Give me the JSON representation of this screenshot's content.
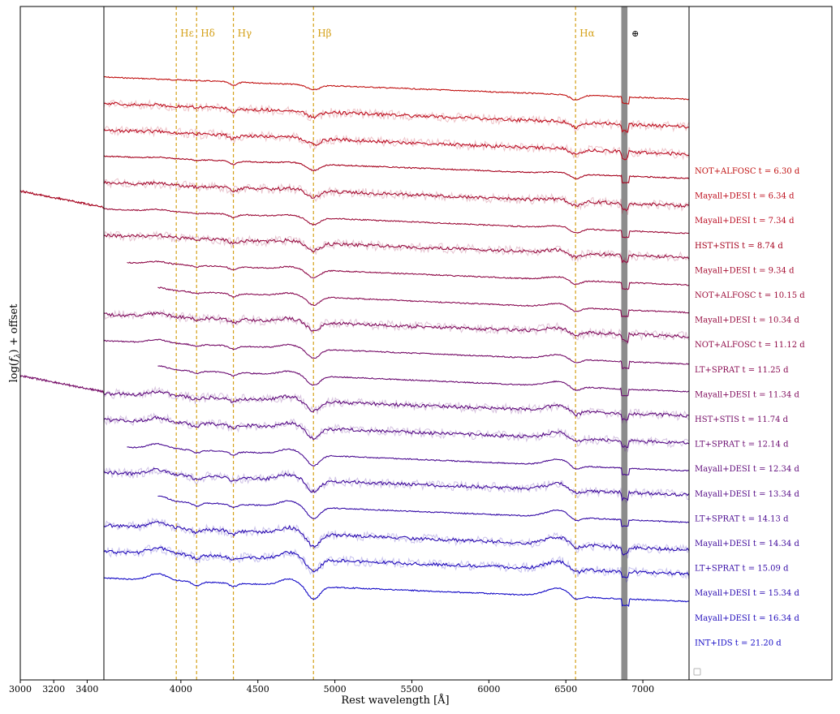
{
  "chart_data": {
    "type": "line",
    "title": "",
    "xlabel": "Rest wavelength [Å]",
    "ylabel": "log(f_λ) + offset",
    "xlim": [
      3000,
      7700
    ],
    "inset_xlim": [
      3000,
      3500
    ],
    "main_xlim": [
      3500,
      7300
    ],
    "legend": "empty legend box at bottom-right",
    "colors": {
      "line_markers": "#d4a017",
      "telluric_band": "#8c8c8c",
      "axes": "#000000",
      "noisy_overlay_alpha": 0.25
    },
    "x_ticks_inset": [
      "3000",
      "3200",
      "3400"
    ],
    "x_ticks_main": [
      "4000",
      "4500",
      "5000",
      "5500",
      "6000",
      "6500",
      "7000"
    ],
    "x_tick_values_inset": [
      3000,
      3200,
      3400
    ],
    "x_tick_values_main": [
      4000,
      4500,
      5000,
      5500,
      6000,
      6500,
      7000
    ],
    "line_markers": [
      {
        "label": "Hε",
        "wavelength": 3970
      },
      {
        "label": "Hδ",
        "wavelength": 4102
      },
      {
        "label": "Hγ",
        "wavelength": 4341
      },
      {
        "label": "Hβ",
        "wavelength": 4861
      },
      {
        "label": "Hα",
        "wavelength": 6563
      }
    ],
    "telluric": {
      "label": "⊕",
      "range": [
        6860,
        6900
      ]
    },
    "series": [
      {
        "name": "NOT+ALFOSC t = 6.30 d",
        "color": "#c00f0f",
        "noisy": false,
        "x_start": 3500,
        "offset": 0
      },
      {
        "name": "Mayall+DESI t = 6.34 d",
        "color": "#bd0d1c",
        "noisy": true,
        "x_start": 3500,
        "offset": 1
      },
      {
        "name": "Mayall+DESI t = 7.34 d",
        "color": "#ba0c22",
        "noisy": true,
        "x_start": 3500,
        "offset": 2
      },
      {
        "name": "HST+STIS t = 8.74 d",
        "color": "#a5001c",
        "noisy": false,
        "x_start": 3500,
        "offset": 3,
        "inset": true
      },
      {
        "name": "Mayall+DESI t = 9.34 d",
        "color": "#a50c30",
        "noisy": true,
        "x_start": 3500,
        "offset": 4
      },
      {
        "name": "NOT+ALFOSC t = 10.15 d",
        "color": "#9c0c38",
        "noisy": false,
        "x_start": 3500,
        "offset": 5
      },
      {
        "name": "Mayall+DESI t = 10.34 d",
        "color": "#960c40",
        "noisy": true,
        "x_start": 3500,
        "offset": 6
      },
      {
        "name": "NOT+ALFOSC t = 11.12 d",
        "color": "#8f0b48",
        "noisy": false,
        "x_start": 3650,
        "offset": 7
      },
      {
        "name": "LT+SPRAT t = 11.25 d",
        "color": "#880a52",
        "noisy": false,
        "x_start": 3850,
        "offset": 8
      },
      {
        "name": "Mayall+DESI t = 11.34 d",
        "color": "#7f0a5c",
        "noisy": true,
        "x_start": 3500,
        "offset": 9
      },
      {
        "name": "HST+STIS t = 11.74 d",
        "color": "#740a66",
        "noisy": false,
        "x_start": 3500,
        "offset": 10,
        "inset": true
      },
      {
        "name": "LT+SPRAT t = 12.14 d",
        "color": "#6a0a70",
        "noisy": false,
        "x_start": 3850,
        "offset": 11
      },
      {
        "name": "Mayall+DESI t = 12.34 d",
        "color": "#5f0a7b",
        "noisy": true,
        "x_start": 3500,
        "offset": 12
      },
      {
        "name": "Mayall+DESI t = 13.34 d",
        "color": "#550a86",
        "noisy": true,
        "x_start": 3500,
        "offset": 13
      },
      {
        "name": "LT+SPRAT t = 14.13 d",
        "color": "#4a0a90",
        "noisy": false,
        "x_start": 3650,
        "offset": 14
      },
      {
        "name": "Mayall+DESI t = 14.34 d",
        "color": "#3f0a9b",
        "noisy": true,
        "x_start": 3500,
        "offset": 15
      },
      {
        "name": "LT+SPRAT t = 15.09 d",
        "color": "#340aa6",
        "noisy": false,
        "x_start": 3850,
        "offset": 16
      },
      {
        "name": "Mayall+DESI t = 15.34 d",
        "color": "#2a0ab0",
        "noisy": true,
        "x_start": 3500,
        "offset": 17
      },
      {
        "name": "Mayall+DESI t = 16.34 d",
        "color": "#200abb",
        "noisy": true,
        "x_start": 3500,
        "offset": 18
      },
      {
        "name": "INT+IDS t = 21.20 d",
        "color": "#140ac6",
        "noisy": false,
        "x_start": 3500,
        "offset": 19
      }
    ]
  }
}
